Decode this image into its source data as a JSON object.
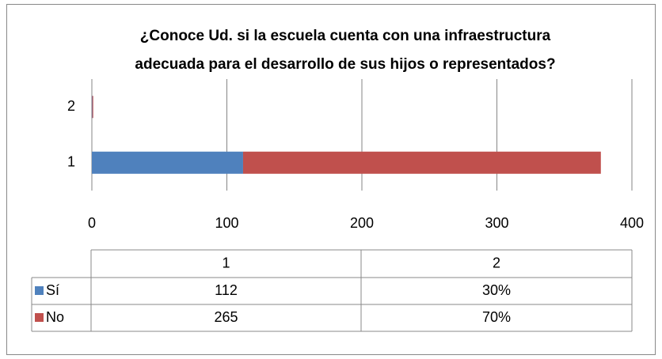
{
  "chart_data": {
    "type": "stacked_barh",
    "title": "¿Conoce Ud. si la escuela cuenta con una infraestructura adecuada para el desarrollo de sus hijos o representados?",
    "categories": [
      "1",
      "2"
    ],
    "series": [
      {
        "name": "Sí",
        "color": "#4f81bd",
        "values": [
          112,
          0.3
        ],
        "value_labels": [
          "112",
          "30%"
        ]
      },
      {
        "name": "No",
        "color": "#c0504d",
        "values": [
          265,
          0.7
        ],
        "value_labels": [
          "265",
          "70%"
        ]
      }
    ],
    "xlim": [
      0,
      400
    ],
    "xticks": [
      0,
      100,
      200,
      300,
      400
    ],
    "grid": true,
    "legend": "table"
  }
}
